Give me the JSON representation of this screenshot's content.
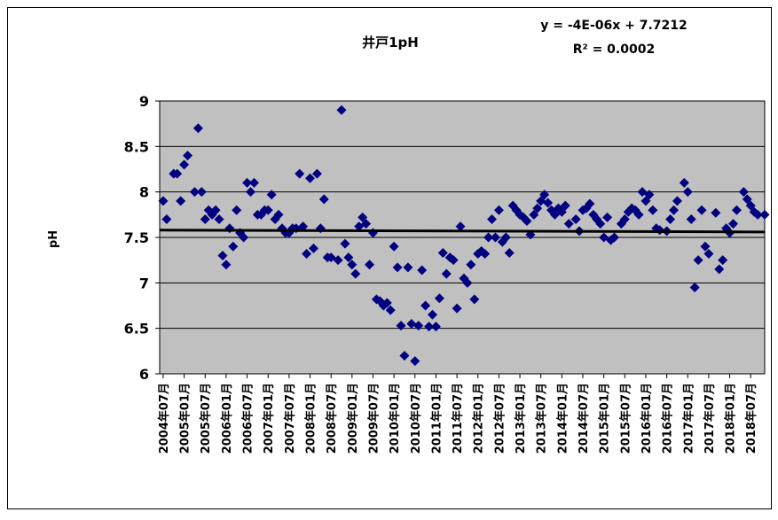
{
  "chart_data": {
    "type": "scatter",
    "title": "井戸1pH",
    "y_label": "pH",
    "annotations": [
      "y = -4E-06x + 7.7212",
      "R² = 0.0002"
    ],
    "color": "#000080",
    "x": [
      "2004年07月",
      "2004年08月",
      "2004年09月",
      "2004年10月",
      "2004年11月",
      "2004年12月",
      "2005年01月",
      "2005年02月",
      "2005年03月",
      "2005年04月",
      "2005年05月",
      "2005年06月",
      "2005年07月",
      "2005年08月",
      "2005年09月",
      "2005年10月",
      "2005年11月",
      "2005年12月",
      "2006年01月",
      "2006年02月",
      "2006年03月",
      "2006年04月",
      "2006年05月",
      "2006年06月",
      "2006年07月",
      "2006年08月",
      "2006年09月",
      "2006年10月",
      "2006年11月",
      "2006年12月",
      "2007年01月",
      "2007年02月",
      "2007年03月",
      "2007年04月",
      "2007年05月",
      "2007年06月",
      "2007年07月",
      "2007年08月",
      "2007年09月",
      "2007年10月",
      "2007年11月",
      "2007年12月",
      "2008年01月",
      "2008年02月",
      "2008年03月",
      "2008年04月",
      "2008年05月",
      "2008年06月",
      "2008年07月",
      "2008年08月",
      "2008年09月",
      "2008年10月",
      "2008年11月",
      "2008年12月",
      "2009年01月",
      "2009年02月",
      "2009年03月",
      "2009年04月",
      "2009年05月",
      "2009年06月",
      "2009年07月",
      "2009年08月",
      "2009年09月",
      "2009年10月",
      "2009年11月",
      "2009年12月",
      "2010年01月",
      "2010年02月",
      "2010年03月",
      "2010年04月",
      "2010年05月",
      "2010年06月",
      "2010年07月",
      "2010年08月",
      "2010年09月",
      "2010年10月",
      "2010年11月",
      "2010年12月",
      "2011年01月",
      "2011年02月",
      "2011年03月",
      "2011年04月",
      "2011年05月",
      "2011年06月",
      "2011年07月",
      "2011年08月",
      "2011年09月",
      "2011年10月",
      "2011年11月",
      "2011年12月",
      "2012年01月",
      "2012年02月",
      "2012年03月",
      "2012年04月",
      "2012年05月",
      "2012年06月",
      "2012年07月",
      "2012年08月",
      "2012年09月",
      "2012年10月",
      "2012年11月",
      "2012年12月",
      "2013年01月",
      "2013年02月",
      "2013年03月",
      "2013年04月",
      "2013年05月",
      "2013年06月",
      "2013年07月",
      "2013年08月",
      "2013年09月",
      "2013年10月",
      "2013年11月",
      "2013年12月",
      "2014年01月",
      "2014年02月",
      "2014年03月",
      "2014年04月",
      "2014年05月",
      "2014年06月",
      "2014年07月",
      "2014年08月",
      "2014年09月",
      "2014年10月",
      "2014年11月",
      "2014年12月",
      "2015年01月",
      "2015年02月",
      "2015年03月",
      "2015年04月",
      "2015年05月",
      "2015年06月",
      "2015年07月",
      "2015年08月",
      "2015年09月",
      "2015年10月",
      "2015年11月",
      "2015年12月",
      "2016年01月",
      "2016年02月",
      "2016年03月",
      "2016年04月",
      "2016年05月",
      "2016年06月",
      "2016年07月",
      "2016年08月",
      "2016年09月",
      "2016年10月",
      "2016年11月",
      "2016年12月",
      "2017年01月",
      "2017年02月",
      "2017年03月",
      "2017年04月",
      "2017年05月",
      "2017年06月",
      "2017年07月",
      "2017年08月",
      "2017年09月",
      "2017年10月",
      "2017年11月",
      "2017年12月",
      "2018年01月",
      "2018年02月",
      "2018年03月",
      "2018年04月",
      "2018年05月",
      "2018年06月",
      "2018年07月",
      "2018年08月",
      "2018年09月",
      "2018年10月",
      "2018年11月"
    ],
    "values": [
      7.9,
      7.7,
      null,
      8.2,
      8.2,
      7.9,
      8.3,
      8.4,
      null,
      8.0,
      8.7,
      8.0,
      7.7,
      7.8,
      7.75,
      7.8,
      7.7,
      7.3,
      7.2,
      7.6,
      7.4,
      7.8,
      7.55,
      7.5,
      8.1,
      8.0,
      8.1,
      7.75,
      7.75,
      7.8,
      7.8,
      7.97,
      7.7,
      7.75,
      7.6,
      7.55,
      7.55,
      7.6,
      7.6,
      8.2,
      7.62,
      7.32,
      8.15,
      7.38,
      8.2,
      7.6,
      7.92,
      7.28,
      7.28,
      null,
      7.25,
      8.9,
      7.43,
      7.28,
      7.2,
      7.1,
      7.62,
      7.72,
      7.65,
      7.2,
      7.55,
      6.82,
      6.8,
      6.75,
      6.78,
      6.7,
      7.4,
      7.17,
      6.53,
      6.2,
      7.17,
      6.55,
      6.14,
      6.53,
      7.14,
      6.75,
      6.52,
      6.65,
      6.52,
      6.83,
      7.33,
      7.1,
      7.28,
      7.25,
      6.72,
      7.62,
      7.05,
      7.0,
      7.2,
      6.82,
      7.32,
      7.35,
      7.32,
      7.5,
      7.7,
      7.5,
      7.8,
      7.45,
      7.5,
      7.33,
      7.85,
      7.8,
      7.75,
      7.72,
      7.68,
      7.53,
      7.75,
      7.82,
      7.9,
      7.97,
      7.88,
      7.8,
      7.75,
      7.82,
      7.78,
      7.85,
      7.65,
      null,
      7.7,
      7.57,
      7.8,
      7.82,
      7.87,
      7.75,
      7.7,
      7.65,
      7.5,
      7.72,
      7.47,
      7.5,
      null,
      7.65,
      7.7,
      7.78,
      7.82,
      7.8,
      7.75,
      8.0,
      7.9,
      7.97,
      7.8,
      7.6,
      7.58,
      null,
      7.57,
      7.7,
      7.8,
      7.9,
      null,
      8.1,
      8.0,
      7.7,
      6.95,
      7.25,
      7.8,
      7.4,
      7.32,
      null,
      7.77,
      7.15,
      7.25,
      7.6,
      7.55,
      7.65,
      7.8,
      null,
      8.0,
      7.92,
      7.85,
      7.78,
      7.75,
      null,
      7.75
    ],
    "trendline": {
      "x": [
        "2004年06月",
        "2018年11月"
      ],
      "values": [
        7.58,
        7.56
      ],
      "color": "#000000"
    },
    "xlim": [
      "2004年06月",
      "2018年11月"
    ],
    "xticks": [
      "2004年07月",
      "2005年01月",
      "2005年07月",
      "2006年01月",
      "2006年07月",
      "2007年01月",
      "2007年07月",
      "2008年01月",
      "2008年07月",
      "2009年01月",
      "2009年07月",
      "2010年01月",
      "2010年07月",
      "2011年01月",
      "2011年07月",
      "2012年01月",
      "2012年07月",
      "2013年01月",
      "2013年07月",
      "2014年01月",
      "2014年07月",
      "2015年01月",
      "2015年07月",
      "2016年01月",
      "2016年07月",
      "2017年01月",
      "2017年07月",
      "2018年01月",
      "2018年07月"
    ],
    "ylim": [
      6,
      9
    ],
    "yticks": [
      6,
      6.5,
      7,
      7.5,
      8,
      8.5,
      9
    ],
    "grid": true,
    "plot_background": "#c0c0c0"
  }
}
